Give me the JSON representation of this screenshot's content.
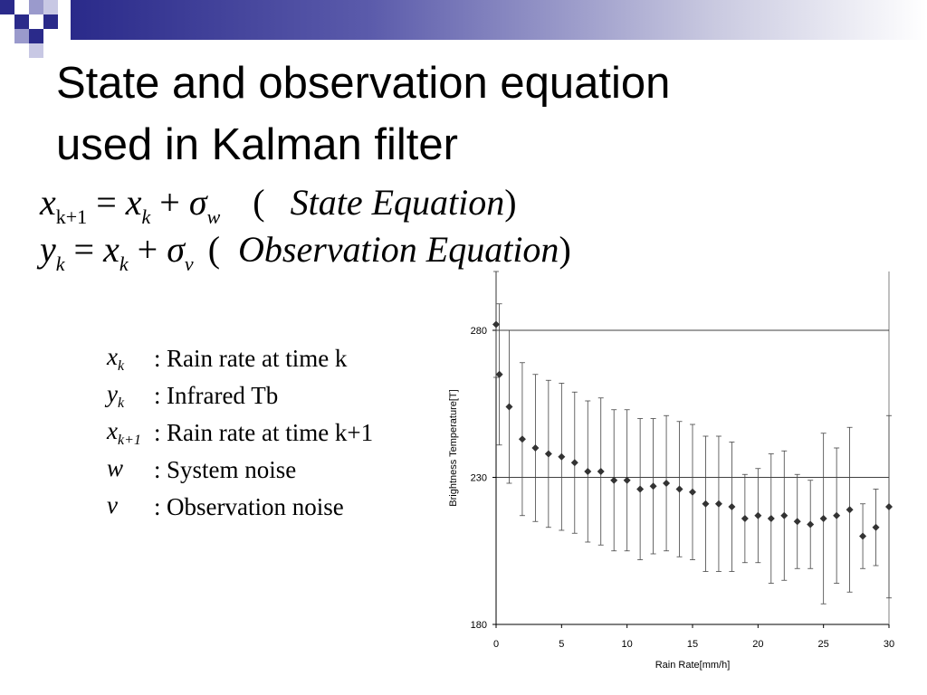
{
  "slide": {
    "title_line1": "State and observation equation",
    "title_line2": "used in Kalman filter"
  },
  "equations": {
    "state": {
      "lhs": "x",
      "lhs_sub": "k+1",
      "rhs_x": "x",
      "rhs_x_sub": "k",
      "sigma_sub": "w",
      "paren_open": "(",
      "label": "State Equation",
      "paren_close": ")"
    },
    "observation": {
      "lhs": "y",
      "lhs_sub": "k",
      "rhs_x": "x",
      "rhs_x_sub": "k",
      "sigma_sub": "v",
      "paren_open": "(",
      "label": "Observation Equation",
      "paren_close": ")"
    }
  },
  "definitions": [
    {
      "symbol": "x",
      "sub": "k",
      "text": "Rain rate at time k"
    },
    {
      "symbol": "y",
      "sub": "k",
      "text": "Infrared Tb"
    },
    {
      "symbol": "x",
      "sub": "k+1",
      "text": "Rain rate at time k+1"
    },
    {
      "symbol": "w",
      "sub": "",
      "text": "System noise"
    },
    {
      "symbol": "v",
      "sub": "",
      "text": "Observation noise"
    }
  ],
  "chart_data": {
    "type": "scatter",
    "xlabel": "Rain Rate[mm/h]",
    "ylabel": "Brightness Temperature[T]",
    "xlim": [
      0,
      30
    ],
    "ylim": [
      180,
      300
    ],
    "xticks": [
      0,
      5,
      10,
      15,
      20,
      25,
      30
    ],
    "yticks": [
      180,
      230,
      280
    ],
    "gridlines_y": [
      230,
      280
    ],
    "series": [
      {
        "x": [
          0,
          0.25,
          1,
          2,
          3,
          4,
          5,
          6,
          7,
          8,
          9,
          10,
          11,
          12,
          13,
          14,
          15,
          16,
          17,
          18,
          19,
          20,
          21,
          22,
          23,
          24,
          25,
          26,
          27,
          28,
          29,
          30
        ],
        "y": [
          282,
          265,
          254,
          243,
          240,
          238,
          237,
          235,
          232,
          232,
          229,
          229,
          226,
          227,
          228,
          226,
          225,
          221,
          221,
          220,
          216,
          217,
          216,
          217,
          215,
          214,
          216,
          217,
          219,
          210,
          213,
          220
        ],
        "err": [
          18,
          24,
          26,
          26,
          25,
          25,
          25,
          24,
          24,
          25,
          24,
          24,
          24,
          23,
          23,
          23,
          23,
          23,
          23,
          22,
          15,
          16,
          22,
          22,
          16,
          15,
          29,
          23,
          28,
          11,
          13,
          31
        ]
      }
    ]
  },
  "colors": {
    "marker": "#333333",
    "axis": "#000000",
    "grid": "#000000"
  }
}
